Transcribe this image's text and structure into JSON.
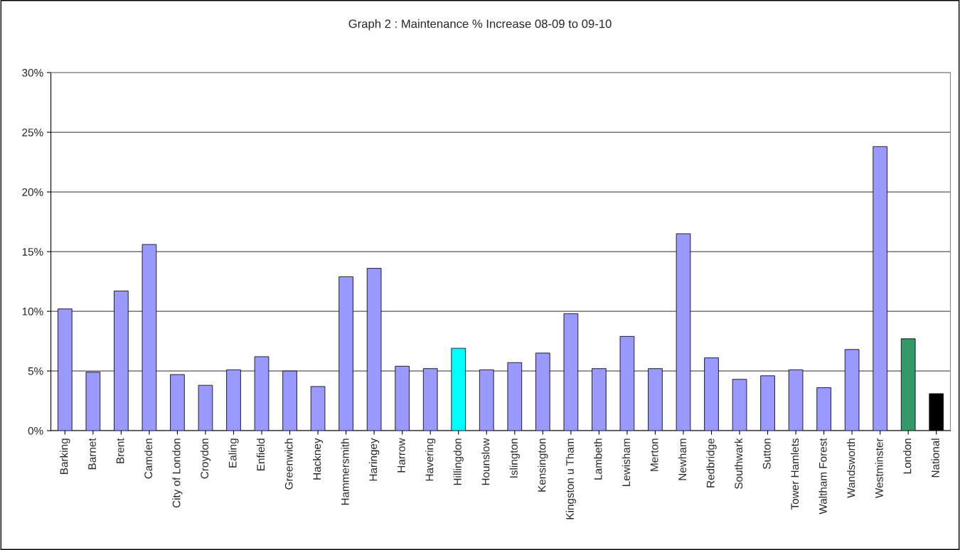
{
  "chart_data": {
    "type": "bar",
    "title": "Graph 2 : Maintenance % Increase 08-09 to 09-10",
    "categories": [
      "Barking",
      "Barnet",
      "Brent",
      "Camden",
      "City of London",
      "Croydon",
      "Ealing",
      "Enfield",
      "Greenwich",
      "Hackney",
      "Hammersmith",
      "Haringey",
      "Harrow",
      "Havering",
      "Hillingdon",
      "Hounslow",
      "Islington",
      "Kensington",
      "Kingston u Tham",
      "Lambeth",
      "Lewisham",
      "Merton",
      "Newham",
      "Redbridge",
      "Southwark",
      "Sutton",
      "Tower Hamlets",
      "Waltham Forest",
      "Wandsworth",
      "Westminster",
      "London",
      "National"
    ],
    "values": [
      10.2,
      4.9,
      11.7,
      15.6,
      4.7,
      3.8,
      5.1,
      6.2,
      5.0,
      3.7,
      12.9,
      13.6,
      5.4,
      5.2,
      6.9,
      5.1,
      5.7,
      6.5,
      9.8,
      5.2,
      7.9,
      5.2,
      16.5,
      6.1,
      4.3,
      4.6,
      5.1,
      3.6,
      6.8,
      23.8,
      7.7,
      3.1
    ],
    "colors": [
      "#9999ff",
      "#9999ff",
      "#9999ff",
      "#9999ff",
      "#9999ff",
      "#9999ff",
      "#9999ff",
      "#9999ff",
      "#9999ff",
      "#9999ff",
      "#9999ff",
      "#9999ff",
      "#9999ff",
      "#9999ff",
      "#00ffff",
      "#9999ff",
      "#9999ff",
      "#9999ff",
      "#9999ff",
      "#9999ff",
      "#9999ff",
      "#9999ff",
      "#9999ff",
      "#9999ff",
      "#9999ff",
      "#9999ff",
      "#9999ff",
      "#9999ff",
      "#9999ff",
      "#9999ff",
      "#339966",
      "#000000"
    ],
    "ylim": [
      0,
      30
    ],
    "yticks": [
      {
        "value": 0,
        "label": "0%"
      },
      {
        "value": 5,
        "label": "5%"
      },
      {
        "value": 10,
        "label": "10%"
      },
      {
        "value": 15,
        "label": "15%"
      },
      {
        "value": 20,
        "label": "20%"
      },
      {
        "value": 25,
        "label": "25%"
      },
      {
        "value": 30,
        "label": "30%"
      }
    ],
    "grid": "y",
    "legend": false
  }
}
